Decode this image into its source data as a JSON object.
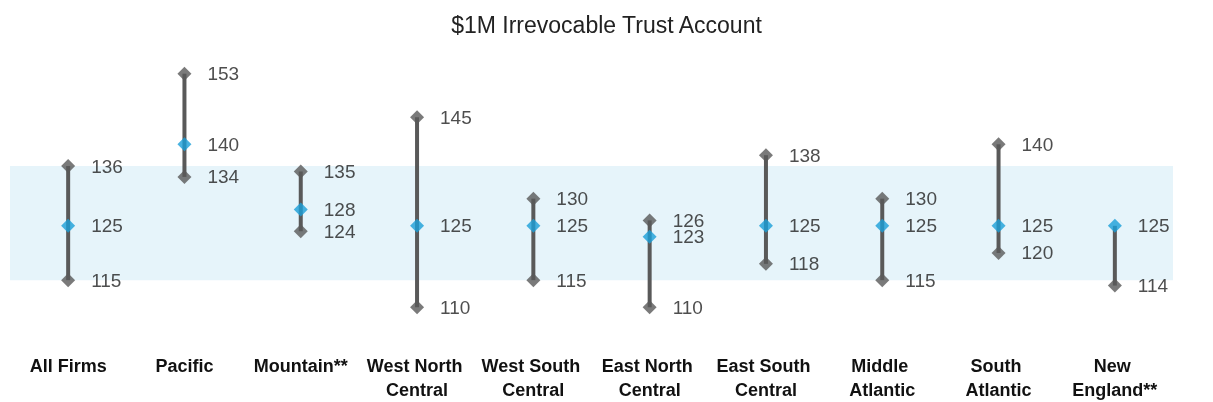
{
  "chart_data": {
    "type": "scatter",
    "title": "$1M Irrevocable Trust Account",
    "categories": [
      "All Firms",
      "Pacific",
      "Mountain**",
      "West North Central",
      "West South Central",
      "East North Central",
      "East South Central",
      "Middle Atlantic",
      "South Atlantic",
      "New England**"
    ],
    "series": [
      {
        "color": "#595959",
        "values": [
          136,
          153,
          135,
          145,
          130,
          126,
          138,
          130,
          140,
          null
        ]
      },
      {
        "color": "#1a9fd8",
        "values": [
          125,
          140,
          128,
          125,
          125,
          123,
          125,
          125,
          125,
          125
        ]
      },
      {
        "color": "#595959",
        "values": [
          115,
          134,
          124,
          110,
          115,
          110,
          118,
          115,
          120,
          114
        ]
      }
    ],
    "bands": [
      {
        "axis": "y",
        "from": 115,
        "to": 136,
        "color": "#e6f4fa"
      }
    ],
    "marker": "diamond",
    "data_labels": true,
    "tick_labels": "x"
  }
}
